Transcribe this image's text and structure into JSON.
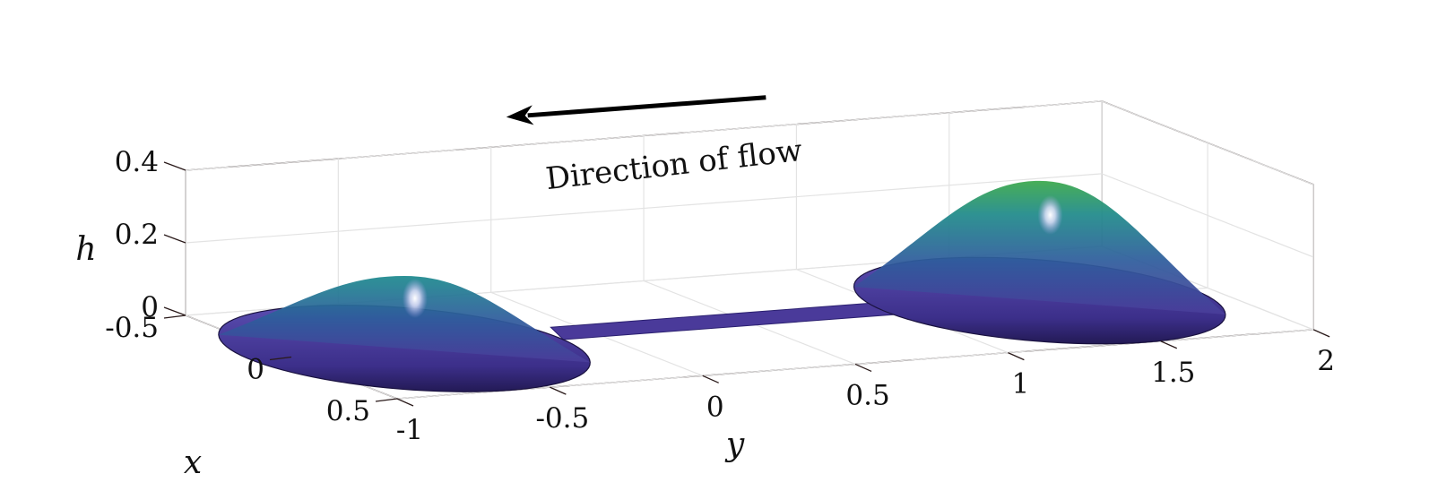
{
  "chart_data": {
    "type": "surface",
    "annotation": "Direction of flow",
    "colormap": [
      "#5a3fa3",
      "#3a5fa0",
      "#1f8a8a",
      "#3aa84a"
    ],
    "x_axis": {
      "label": "x",
      "ticks": [
        -0.5,
        0,
        0.5
      ],
      "tick_labels": [
        "-0.5",
        "0",
        "0.5"
      ],
      "range": [
        -0.5,
        0.5
      ]
    },
    "y_axis": {
      "label": "y",
      "ticks": [
        -1,
        -0.5,
        0,
        0.5,
        1,
        1.5,
        2
      ],
      "tick_labels": [
        "-1",
        "-0.5",
        "0",
        "0.5",
        "1",
        "1.5",
        "2"
      ],
      "range": [
        -1,
        2
      ]
    },
    "z_axis": {
      "label": "h",
      "ticks": [
        0,
        0.2,
        0.4
      ],
      "tick_labels": [
        "0",
        "0.2",
        "0.4"
      ],
      "range": [
        0,
        0.4
      ]
    },
    "grid": true,
    "droplets": [
      {
        "center_x": 0,
        "center_y": -0.63,
        "radius": 0.5,
        "peak_h": 0.2
      },
      {
        "center_x": 0,
        "center_y": 1.45,
        "radius": 0.5,
        "peak_h": 0.33
      }
    ],
    "channel": {
      "x": 0,
      "y_from": -0.13,
      "y_to": 0.95,
      "h": 0.02
    },
    "arrow": {
      "from_y": 0.9,
      "to_y": 0.05,
      "direction": "toward negative y"
    }
  }
}
